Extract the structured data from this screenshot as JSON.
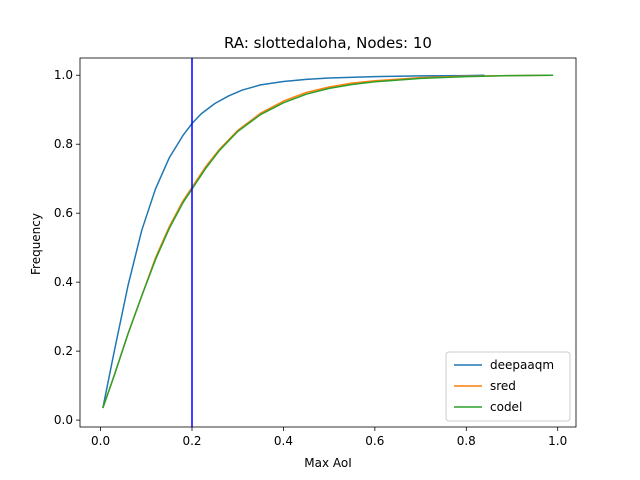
{
  "chart_data": {
    "type": "line",
    "title": "RA: slottedaloha, Nodes: 10",
    "xlabel": "Max AoI",
    "ylabel": "Frequency",
    "xlim": [
      -0.045,
      1.04
    ],
    "ylim": [
      -0.02,
      1.05
    ],
    "xticks": [
      0.0,
      0.2,
      0.4,
      0.6,
      0.8,
      1.0
    ],
    "xtick_labels": [
      "0.0",
      "0.2",
      "0.4",
      "0.6",
      "0.8",
      "1.0"
    ],
    "yticks": [
      0.0,
      0.2,
      0.4,
      0.6,
      0.8,
      1.0
    ],
    "ytick_labels": [
      "0.0",
      "0.2",
      "0.4",
      "0.6",
      "0.8",
      "1.0"
    ],
    "grid": false,
    "legend_position": "lower-right",
    "vline": {
      "x": 0.2,
      "color": "#0000ff"
    },
    "series": [
      {
        "name": "deepaaqm",
        "color": "#1f77b4",
        "x": [
          0.005,
          0.03,
          0.06,
          0.09,
          0.12,
          0.15,
          0.18,
          0.2,
          0.22,
          0.25,
          0.28,
          0.31,
          0.35,
          0.4,
          0.45,
          0.5,
          0.6,
          0.7,
          0.8,
          0.84
        ],
        "y": [
          0.035,
          0.2,
          0.39,
          0.55,
          0.67,
          0.76,
          0.825,
          0.86,
          0.888,
          0.918,
          0.94,
          0.957,
          0.972,
          0.982,
          0.988,
          0.992,
          0.996,
          0.998,
          0.999,
          1.0
        ]
      },
      {
        "name": "sred",
        "color": "#ff7f0e",
        "x": [
          0.005,
          0.03,
          0.06,
          0.09,
          0.12,
          0.15,
          0.18,
          0.2,
          0.23,
          0.26,
          0.3,
          0.35,
          0.4,
          0.45,
          0.5,
          0.55,
          0.6,
          0.7,
          0.8,
          0.9,
          0.99
        ],
        "y": [
          0.035,
          0.13,
          0.25,
          0.36,
          0.47,
          0.56,
          0.635,
          0.675,
          0.735,
          0.785,
          0.84,
          0.89,
          0.925,
          0.95,
          0.966,
          0.977,
          0.984,
          0.993,
          0.997,
          0.999,
          1.0
        ]
      },
      {
        "name": "codel",
        "color": "#2ca02c",
        "x": [
          0.005,
          0.03,
          0.06,
          0.09,
          0.12,
          0.15,
          0.18,
          0.2,
          0.23,
          0.26,
          0.3,
          0.35,
          0.4,
          0.45,
          0.5,
          0.55,
          0.6,
          0.7,
          0.8,
          0.9,
          0.99
        ],
        "y": [
          0.035,
          0.13,
          0.25,
          0.36,
          0.465,
          0.555,
          0.63,
          0.67,
          0.73,
          0.782,
          0.837,
          0.886,
          0.92,
          0.945,
          0.962,
          0.973,
          0.981,
          0.991,
          0.996,
          0.999,
          1.0
        ]
      }
    ]
  }
}
